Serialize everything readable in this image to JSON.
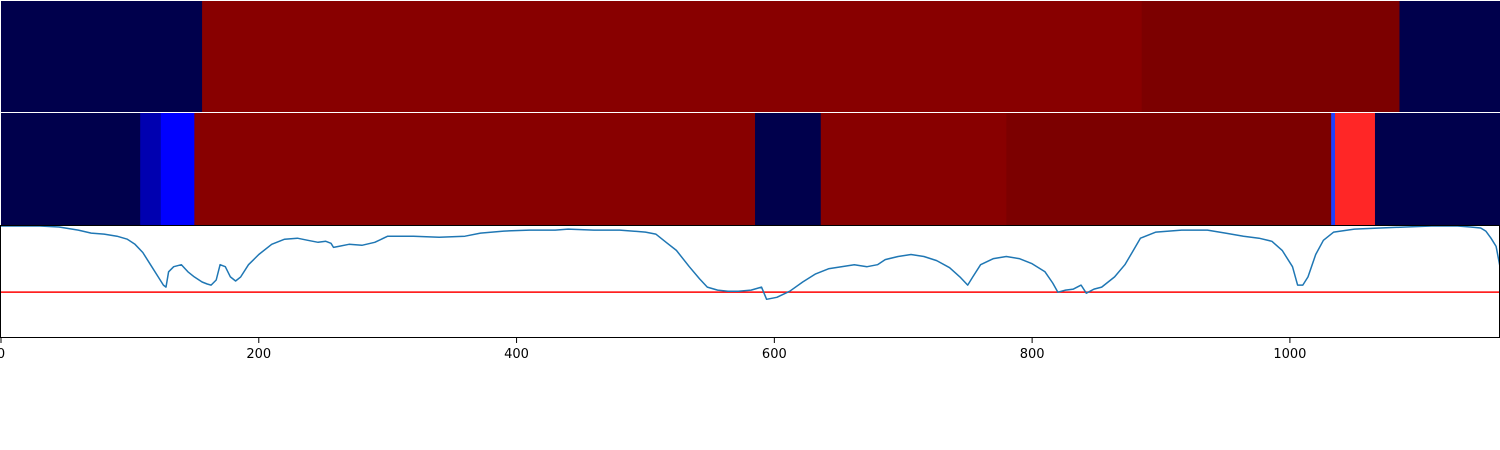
{
  "chart_data": [
    {
      "type": "heatmap",
      "panel": "top-band",
      "segments": [
        {
          "start": 0,
          "end": 156,
          "color": "#00004c"
        },
        {
          "start": 156,
          "end": 885,
          "color": "#880000"
        },
        {
          "start": 885,
          "end": 1085,
          "color": "#7c0000"
        },
        {
          "start": 1085,
          "end": 1163,
          "color": "#00004c"
        }
      ]
    },
    {
      "type": "heatmap",
      "panel": "middle-band",
      "segments": [
        {
          "start": 0,
          "end": 108,
          "color": "#00004c"
        },
        {
          "start": 108,
          "end": 124,
          "color": "#0000b0"
        },
        {
          "start": 124,
          "end": 150,
          "color": "#0000ff"
        },
        {
          "start": 150,
          "end": 585,
          "color": "#880000"
        },
        {
          "start": 585,
          "end": 636,
          "color": "#00004c"
        },
        {
          "start": 636,
          "end": 780,
          "color": "#880000"
        },
        {
          "start": 780,
          "end": 1032,
          "color": "#7c0000"
        },
        {
          "start": 1032,
          "end": 1035,
          "color": "#2040ff"
        },
        {
          "start": 1035,
          "end": 1066,
          "color": "#ff2626"
        },
        {
          "start": 1066,
          "end": 1163,
          "color": "#00004c"
        }
      ]
    },
    {
      "type": "line",
      "panel": "bottom-trace",
      "xlim": [
        0,
        1163
      ],
      "ylim": [
        -0.1,
        1.0
      ],
      "x_ticks": [
        "0",
        "200",
        "400",
        "600",
        "800",
        "1000"
      ],
      "x_tick_values": [
        0,
        200,
        400,
        600,
        800,
        1000
      ],
      "grid": false,
      "line_color": "#1f77b4",
      "threshold": {
        "value": 0.35,
        "color": "#ff0000"
      },
      "series": [
        {
          "points": [
            [
              0,
              1.0
            ],
            [
              30,
              1.0
            ],
            [
              45,
              0.99
            ],
            [
              60,
              0.96
            ],
            [
              70,
              0.93
            ],
            [
              80,
              0.92
            ],
            [
              90,
              0.9
            ],
            [
              98,
              0.87
            ],
            [
              104,
              0.82
            ],
            [
              110,
              0.74
            ],
            [
              116,
              0.62
            ],
            [
              122,
              0.5
            ],
            [
              126,
              0.42
            ],
            [
              128,
              0.4
            ],
            [
              130,
              0.55
            ],
            [
              134,
              0.6
            ],
            [
              140,
              0.62
            ],
            [
              145,
              0.55
            ],
            [
              150,
              0.5
            ],
            [
              156,
              0.45
            ],
            [
              160,
              0.43
            ],
            [
              163,
              0.42
            ],
            [
              167,
              0.47
            ],
            [
              170,
              0.62
            ],
            [
              174,
              0.6
            ],
            [
              178,
              0.5
            ],
            [
              182,
              0.46
            ],
            [
              186,
              0.5
            ],
            [
              192,
              0.62
            ],
            [
              200,
              0.72
            ],
            [
              210,
              0.82
            ],
            [
              220,
              0.87
            ],
            [
              230,
              0.88
            ],
            [
              238,
              0.86
            ],
            [
              246,
              0.84
            ],
            [
              252,
              0.85
            ],
            [
              256,
              0.83
            ],
            [
              258,
              0.79
            ],
            [
              262,
              0.8
            ],
            [
              270,
              0.82
            ],
            [
              280,
              0.81
            ],
            [
              290,
              0.84
            ],
            [
              300,
              0.9
            ],
            [
              320,
              0.9
            ],
            [
              340,
              0.89
            ],
            [
              360,
              0.9
            ],
            [
              372,
              0.93
            ],
            [
              390,
              0.95
            ],
            [
              410,
              0.96
            ],
            [
              430,
              0.96
            ],
            [
              440,
              0.97
            ],
            [
              460,
              0.96
            ],
            [
              480,
              0.96
            ],
            [
              500,
              0.94
            ],
            [
              508,
              0.92
            ],
            [
              516,
              0.84
            ],
            [
              524,
              0.76
            ],
            [
              534,
              0.6
            ],
            [
              542,
              0.48
            ],
            [
              548,
              0.4
            ],
            [
              556,
              0.37
            ],
            [
              564,
              0.36
            ],
            [
              572,
              0.36
            ],
            [
              582,
              0.37
            ],
            [
              590,
              0.4
            ],
            [
              594,
              0.28
            ],
            [
              602,
              0.3
            ],
            [
              612,
              0.36
            ],
            [
              622,
              0.45
            ],
            [
              632,
              0.53
            ],
            [
              642,
              0.58
            ],
            [
              652,
              0.6
            ],
            [
              662,
              0.62
            ],
            [
              672,
              0.6
            ],
            [
              680,
              0.62
            ],
            [
              686,
              0.67
            ],
            [
              696,
              0.7
            ],
            [
              706,
              0.72
            ],
            [
              716,
              0.7
            ],
            [
              726,
              0.66
            ],
            [
              736,
              0.59
            ],
            [
              744,
              0.5
            ],
            [
              750,
              0.42
            ],
            [
              754,
              0.5
            ],
            [
              760,
              0.62
            ],
            [
              770,
              0.68
            ],
            [
              780,
              0.7
            ],
            [
              790,
              0.68
            ],
            [
              800,
              0.63
            ],
            [
              810,
              0.55
            ],
            [
              816,
              0.44
            ],
            [
              820,
              0.35
            ],
            [
              826,
              0.37
            ],
            [
              832,
              0.38
            ],
            [
              838,
              0.42
            ],
            [
              842,
              0.34
            ],
            [
              848,
              0.38
            ],
            [
              854,
              0.4
            ],
            [
              864,
              0.5
            ],
            [
              872,
              0.62
            ],
            [
              878,
              0.75
            ],
            [
              884,
              0.88
            ],
            [
              896,
              0.94
            ],
            [
              916,
              0.96
            ],
            [
              936,
              0.96
            ],
            [
              950,
              0.93
            ],
            [
              964,
              0.9
            ],
            [
              976,
              0.88
            ],
            [
              986,
              0.85
            ],
            [
              994,
              0.76
            ],
            [
              1002,
              0.6
            ],
            [
              1006,
              0.42
            ],
            [
              1010,
              0.42
            ],
            [
              1014,
              0.5
            ],
            [
              1020,
              0.72
            ],
            [
              1026,
              0.86
            ],
            [
              1034,
              0.94
            ],
            [
              1050,
              0.97
            ],
            [
              1070,
              0.98
            ],
            [
              1090,
              0.99
            ],
            [
              1110,
              1.0
            ],
            [
              1130,
              1.0
            ],
            [
              1140,
              0.99
            ],
            [
              1148,
              0.98
            ],
            [
              1152,
              0.95
            ],
            [
              1156,
              0.88
            ],
            [
              1160,
              0.8
            ],
            [
              1163,
              0.6
            ]
          ]
        }
      ]
    }
  ]
}
